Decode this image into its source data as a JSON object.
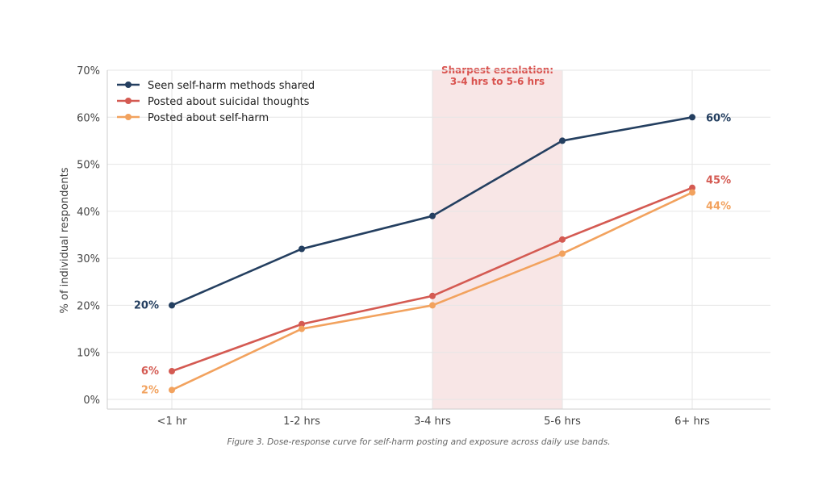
{
  "chart_data": {
    "type": "line",
    "categories": [
      "<1 hr",
      "1-2 hrs",
      "3-4 hrs",
      "5-6 hrs",
      "6+ hrs"
    ],
    "ylabel": "% of individual respondents",
    "ylim": [
      0,
      70
    ],
    "yticks": [
      0,
      10,
      20,
      30,
      40,
      50,
      60,
      70
    ],
    "ytick_labels": [
      "0%",
      "10%",
      "20%",
      "30%",
      "40%",
      "50%",
      "60%",
      "70%"
    ],
    "grid": true,
    "legend_position": "top-left",
    "series": [
      {
        "name": "Seen self-harm methods shared",
        "values": [
          20,
          32,
          39,
          55,
          60
        ],
        "color": "#243f60",
        "start_label": "20%",
        "end_label": "60%"
      },
      {
        "name": "Posted about suicidal thoughts",
        "values": [
          6,
          16,
          22,
          34,
          45
        ],
        "color": "#d45a52",
        "start_label": "6%",
        "end_label": "45%"
      },
      {
        "name": "Posted about self-harm",
        "values": [
          2,
          15,
          20,
          31,
          44
        ],
        "color": "#f2a25e",
        "start_label": "2%",
        "end_label": "44%"
      }
    ],
    "highlight": {
      "from_category": "3-4 hrs",
      "to_category": "5-6 hrs",
      "fill": "#f8e6e6",
      "annotation_lines": [
        "Sharpest escalation:",
        "3-4 hrs to 5-6 hrs"
      ],
      "annotation_color": "#d9534f"
    },
    "caption": "Figure 3. Dose-response curve for self-harm posting and exposure across daily use bands."
  }
}
